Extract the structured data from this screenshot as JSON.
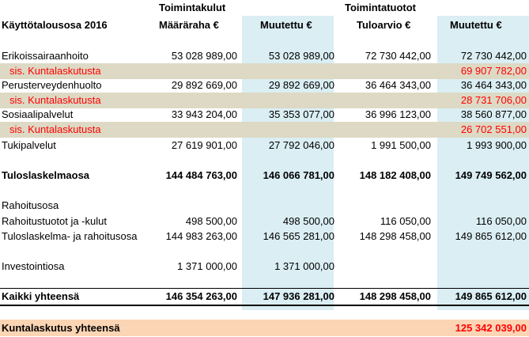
{
  "header": {
    "group_costs": "Toimintakulut",
    "group_income": "Toimintatuotot",
    "col_title": "Käyttötalousosa 2016",
    "col1": "Määräraha €",
    "col2": "Muutettu €",
    "col3": "Tuloarvio €",
    "col4": "Muutettu €"
  },
  "rows": {
    "erikois": {
      "label": "Erikoissairaanhoito",
      "v1": "53 028 989,00",
      "v2": "53 028 989,00",
      "v3": "72 730 442,00",
      "v4": "72 730 442,00"
    },
    "erikois_kunta": {
      "label": "sis. Kuntalaskutusta",
      "v4": "69 907 782,00"
    },
    "perus": {
      "label": "Perusterveydenhuolto",
      "v1": "29 892 669,00",
      "v2": "29 892 669,00",
      "v3": "36 464 343,00",
      "v4": "36 464 343,00"
    },
    "perus_kunta": {
      "label": "sis. Kuntalaskutusta",
      "v4": "28 731 706,00"
    },
    "sosiaali": {
      "label": "Sosiaalipalvelut",
      "v1": "33 943 204,00",
      "v2": "35 353 077,00",
      "v3": "36 996 123,00",
      "v4": "38 560 877,00"
    },
    "sosiaali_kunta": {
      "label": "sis. Kuntalaskutusta",
      "v4": "26 702 551,00"
    },
    "tuki": {
      "label": "Tukipalvelut",
      "v1": "27 619 901,00",
      "v2": "27 792 046,00",
      "v3": "1 991 500,00",
      "v4": "1 993 900,00"
    },
    "tuloslaskelma": {
      "label": "Tuloslaskelmaosa",
      "v1": "144 484 763,00",
      "v2": "146 066 781,00",
      "v3": "148 182 408,00",
      "v4": "149 749 562,00"
    },
    "rahoitusosa": {
      "label": "Rahoitusosa"
    },
    "rahoitustuotot": {
      "label": "Rahoitustuotot ja -kulut",
      "v1": "498 500,00",
      "v2": "498 500,00",
      "v3": "116 050,00",
      "v4": "116 050,00"
    },
    "tuloslaskelma_rahoitus": {
      "label": "Tuloslaskelma- ja rahoitusosa",
      "v1": "144 983 263,00",
      "v2": "146 565 281,00",
      "v3": "148 298 458,00",
      "v4": "149 865 612,00"
    },
    "investointi": {
      "label": "Investointiosa",
      "v1": "1 371 000,00",
      "v2": "1 371 000,00"
    },
    "kaikki": {
      "label": "Kaikki yhteensä",
      "v1": "146 354 263,00",
      "v2": "147 936 281,00",
      "v3": "148 298 458,00",
      "v4": "149 865 612,00"
    }
  },
  "footer": {
    "label": "Kuntalaskutus yhteensä",
    "value": "125 342 039,00"
  },
  "colors": {
    "column_highlight": "#daeef3",
    "subrow_band": "#ddd9c4",
    "subrow_text": "#ff0000",
    "footer_band": "#fcd5b4"
  }
}
